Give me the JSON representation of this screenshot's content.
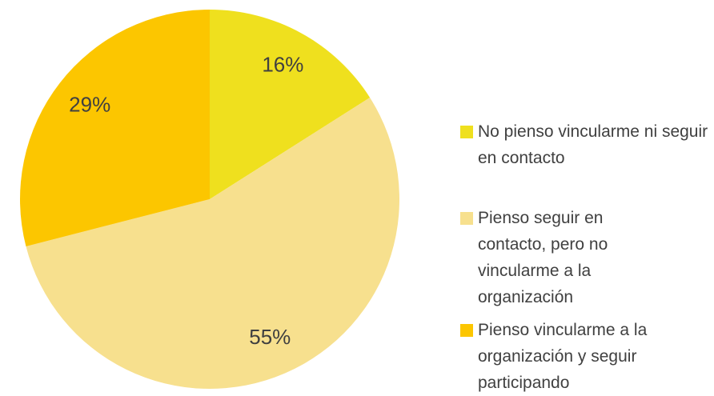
{
  "chart_data": {
    "type": "pie",
    "categories": [
      "No pienso vincularme ni seguir en contacto",
      "Pienso seguir en contacto, pero no vincularme a la organización",
      "Pienso vincularme a la organización y seguir participando"
    ],
    "values": [
      16,
      55,
      29
    ],
    "value_labels": [
      "16%",
      "55%",
      "29%"
    ],
    "colors": [
      "#efe01e",
      "#f7e08e",
      "#fcc600"
    ],
    "legend": "right"
  }
}
